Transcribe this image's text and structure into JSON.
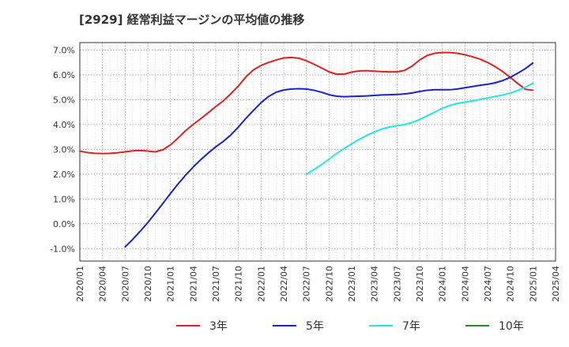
{
  "chart_data": {
    "type": "line",
    "title": "[2929]  経常利益マージンの平均値の推移",
    "xlabel": "",
    "ylabel": "",
    "ylim": [
      -0.015,
      0.073
    ],
    "grid": true,
    "legend_placement": "bottom",
    "y_ticks": [
      0.07,
      0.06,
      0.05,
      0.04,
      0.03,
      0.02,
      0.01,
      0.0,
      -0.01
    ],
    "y_tick_labels": [
      "7.0%",
      "6.0%",
      "5.0%",
      "4.0%",
      "3.0%",
      "2.0%",
      "1.0%",
      "0.0%",
      "-1.0%"
    ],
    "x_tick_labels": [
      "2020/01",
      "2020/04",
      "2020/07",
      "2020/10",
      "2021/01",
      "2021/04",
      "2021/07",
      "2021/10",
      "2022/01",
      "2022/04",
      "2022/07",
      "2022/10",
      "2023/01",
      "2023/04",
      "2023/07",
      "2023/10",
      "2024/01",
      "2024/04",
      "2024/07",
      "2024/10",
      "2025/01",
      "2025/04"
    ],
    "series": [
      {
        "name": "3年",
        "color": "#dd2222",
        "points": [
          [
            "2020/01",
            0.0293
          ],
          [
            "2020/02",
            0.0287
          ],
          [
            "2020/03",
            0.0284
          ],
          [
            "2020/04",
            0.0283
          ],
          [
            "2020/05",
            0.0284
          ],
          [
            "2020/06",
            0.0286
          ],
          [
            "2020/07",
            0.029
          ],
          [
            "2020/08",
            0.0294
          ],
          [
            "2020/09",
            0.0295
          ],
          [
            "2020/10",
            0.0293
          ],
          [
            "2020/11",
            0.029
          ],
          [
            "2020/12",
            0.0298
          ],
          [
            "2021/01",
            0.0318
          ],
          [
            "2021/02",
            0.0345
          ],
          [
            "2021/03",
            0.0375
          ],
          [
            "2021/04",
            0.04
          ],
          [
            "2021/05",
            0.0423
          ],
          [
            "2021/06",
            0.0447
          ],
          [
            "2021/07",
            0.0472
          ],
          [
            "2021/08",
            0.0495
          ],
          [
            "2021/09",
            0.0524
          ],
          [
            "2021/10",
            0.0555
          ],
          [
            "2021/11",
            0.0592
          ],
          [
            "2021/12",
            0.062
          ],
          [
            "2022/01",
            0.0638
          ],
          [
            "2022/02",
            0.065
          ],
          [
            "2022/03",
            0.066
          ],
          [
            "2022/04",
            0.0668
          ],
          [
            "2022/05",
            0.067
          ],
          [
            "2022/06",
            0.0667
          ],
          [
            "2022/07",
            0.0657
          ],
          [
            "2022/08",
            0.0643
          ],
          [
            "2022/09",
            0.0628
          ],
          [
            "2022/10",
            0.0612
          ],
          [
            "2022/11",
            0.0603
          ],
          [
            "2022/12",
            0.0603
          ],
          [
            "2023/01",
            0.0611
          ],
          [
            "2023/02",
            0.0616
          ],
          [
            "2023/03",
            0.0617
          ],
          [
            "2023/04",
            0.0615
          ],
          [
            "2023/05",
            0.0613
          ],
          [
            "2023/06",
            0.0612
          ],
          [
            "2023/07",
            0.0612
          ],
          [
            "2023/08",
            0.0618
          ],
          [
            "2023/09",
            0.0635
          ],
          [
            "2023/10",
            0.066
          ],
          [
            "2023/11",
            0.0678
          ],
          [
            "2023/12",
            0.0687
          ],
          [
            "2024/01",
            0.069
          ],
          [
            "2024/02",
            0.069
          ],
          [
            "2024/03",
            0.0687
          ],
          [
            "2024/04",
            0.0681
          ],
          [
            "2024/05",
            0.0673
          ],
          [
            "2024/06",
            0.0663
          ],
          [
            "2024/07",
            0.065
          ],
          [
            "2024/08",
            0.0633
          ],
          [
            "2024/09",
            0.0613
          ],
          [
            "2024/10",
            0.059
          ],
          [
            "2024/11",
            0.0565
          ],
          [
            "2024/12",
            0.0542
          ],
          [
            "2025/01",
            0.0538
          ]
        ]
      },
      {
        "name": "5年",
        "color": "#1a22cc",
        "points": [
          [
            "2020/07",
            -0.0093
          ],
          [
            "2020/08",
            -0.0063
          ],
          [
            "2020/09",
            -0.003
          ],
          [
            "2020/10",
            0.0005
          ],
          [
            "2020/11",
            0.0043
          ],
          [
            "2020/12",
            0.0082
          ],
          [
            "2021/01",
            0.0122
          ],
          [
            "2021/02",
            0.016
          ],
          [
            "2021/03",
            0.0196
          ],
          [
            "2021/04",
            0.0228
          ],
          [
            "2021/05",
            0.0258
          ],
          [
            "2021/06",
            0.0285
          ],
          [
            "2021/07",
            0.031
          ],
          [
            "2021/08",
            0.0332
          ],
          [
            "2021/09",
            0.0358
          ],
          [
            "2021/10",
            0.039
          ],
          [
            "2021/11",
            0.0425
          ],
          [
            "2021/12",
            0.0457
          ],
          [
            "2022/01",
            0.0488
          ],
          [
            "2022/02",
            0.0513
          ],
          [
            "2022/03",
            0.053
          ],
          [
            "2022/04",
            0.0539
          ],
          [
            "2022/05",
            0.0543
          ],
          [
            "2022/06",
            0.0544
          ],
          [
            "2022/07",
            0.0543
          ],
          [
            "2022/08",
            0.0538
          ],
          [
            "2022/09",
            0.053
          ],
          [
            "2022/10",
            0.052
          ],
          [
            "2022/11",
            0.0514
          ],
          [
            "2022/12",
            0.0512
          ],
          [
            "2023/01",
            0.0513
          ],
          [
            "2023/02",
            0.0514
          ],
          [
            "2023/03",
            0.0515
          ],
          [
            "2023/04",
            0.0517
          ],
          [
            "2023/05",
            0.0519
          ],
          [
            "2023/06",
            0.052
          ],
          [
            "2023/07",
            0.0521
          ],
          [
            "2023/08",
            0.0523
          ],
          [
            "2023/09",
            0.0527
          ],
          [
            "2023/10",
            0.0533
          ],
          [
            "2023/11",
            0.0538
          ],
          [
            "2023/12",
            0.054
          ],
          [
            "2024/01",
            0.054
          ],
          [
            "2024/02",
            0.054
          ],
          [
            "2024/03",
            0.0543
          ],
          [
            "2024/04",
            0.0548
          ],
          [
            "2024/05",
            0.0553
          ],
          [
            "2024/06",
            0.0558
          ],
          [
            "2024/07",
            0.0562
          ],
          [
            "2024/08",
            0.0568
          ],
          [
            "2024/09",
            0.0577
          ],
          [
            "2024/10",
            0.059
          ],
          [
            "2024/11",
            0.0607
          ],
          [
            "2024/12",
            0.0625
          ],
          [
            "2025/01",
            0.0648
          ]
        ]
      },
      {
        "name": "7年",
        "color": "#22e5e5",
        "points": [
          [
            "2022/07",
            0.0199
          ],
          [
            "2022/08",
            0.0218
          ],
          [
            "2022/09",
            0.0238
          ],
          [
            "2022/10",
            0.026
          ],
          [
            "2022/11",
            0.0283
          ],
          [
            "2022/12",
            0.0303
          ],
          [
            "2023/01",
            0.0322
          ],
          [
            "2023/02",
            0.034
          ],
          [
            "2023/03",
            0.0356
          ],
          [
            "2023/04",
            0.037
          ],
          [
            "2023/05",
            0.0382
          ],
          [
            "2023/06",
            0.039
          ],
          [
            "2023/07",
            0.0395
          ],
          [
            "2023/08",
            0.04
          ],
          [
            "2023/09",
            0.0408
          ],
          [
            "2023/10",
            0.042
          ],
          [
            "2023/11",
            0.0435
          ],
          [
            "2023/12",
            0.045
          ],
          [
            "2024/01",
            0.0465
          ],
          [
            "2024/02",
            0.0477
          ],
          [
            "2024/03",
            0.0485
          ],
          [
            "2024/04",
            0.049
          ],
          [
            "2024/05",
            0.0495
          ],
          [
            "2024/06",
            0.0501
          ],
          [
            "2024/07",
            0.0507
          ],
          [
            "2024/08",
            0.0513
          ],
          [
            "2024/09",
            0.0519
          ],
          [
            "2024/10",
            0.0526
          ],
          [
            "2024/11",
            0.0537
          ],
          [
            "2024/12",
            0.055
          ],
          [
            "2025/01",
            0.0566
          ]
        ]
      },
      {
        "name": "10年",
        "color": "#228b22",
        "points": []
      }
    ]
  }
}
